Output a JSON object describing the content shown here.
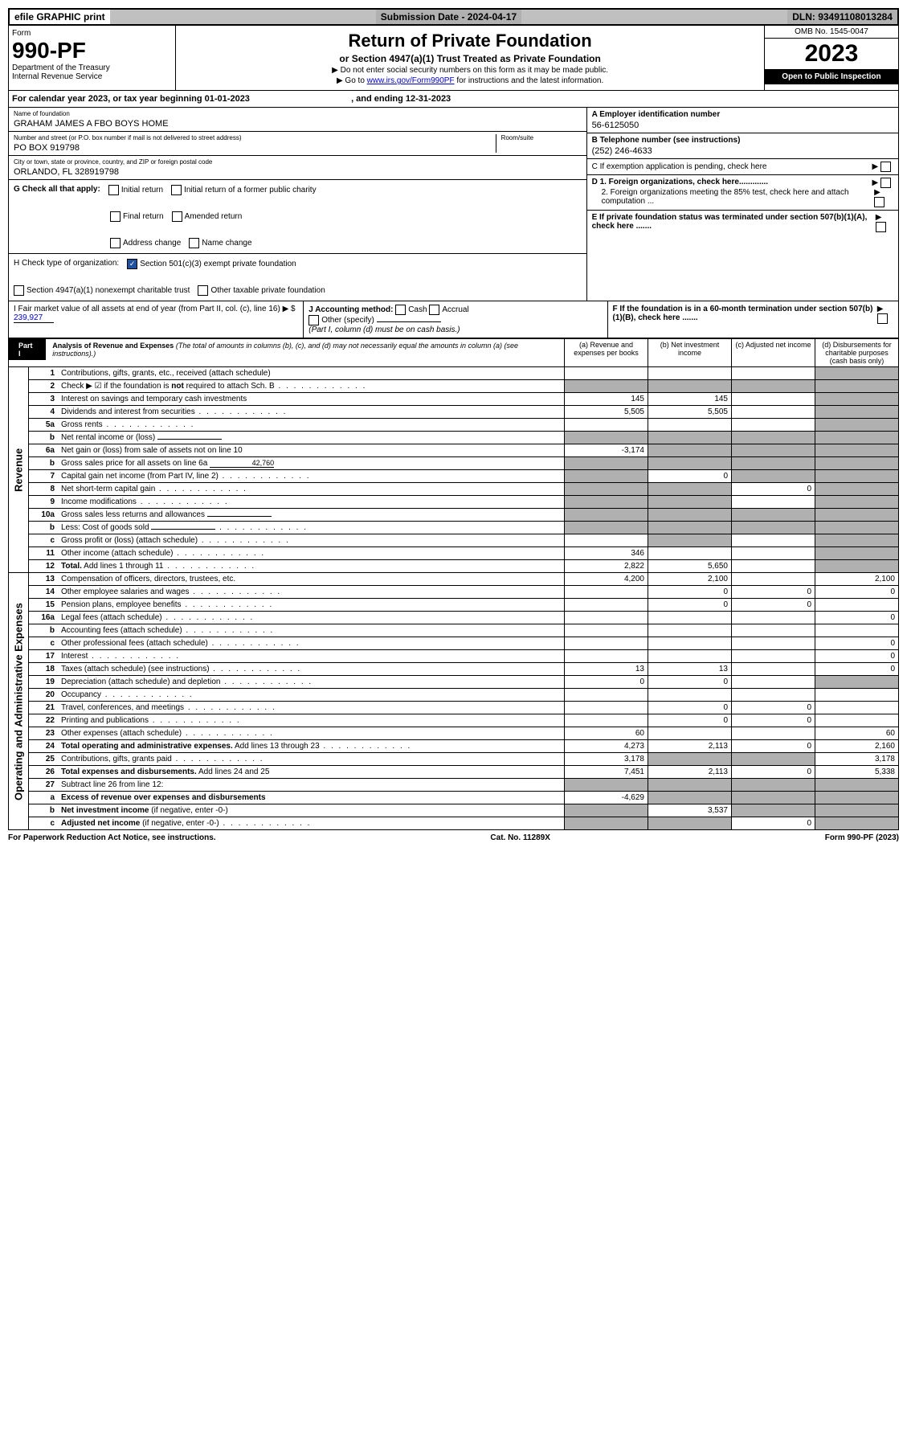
{
  "top_bar": {
    "efile": "efile GRAPHIC print",
    "submission": "Submission Date - 2024-04-17",
    "dln": "DLN: 93491108013284"
  },
  "header": {
    "form_label": "Form",
    "form_number": "990-PF",
    "dept": "Department of the Treasury",
    "irs": "Internal Revenue Service",
    "title": "Return of Private Foundation",
    "subtitle": "or Section 4947(a)(1) Trust Treated as Private Foundation",
    "note1": "▶ Do not enter social security numbers on this form as it may be made public.",
    "note2_pre": "▶ Go to ",
    "note2_link": "www.irs.gov/Form990PF",
    "note2_post": " for instructions and the latest information.",
    "omb": "OMB No. 1545-0047",
    "year": "2023",
    "open": "Open to Public Inspection"
  },
  "calendar": {
    "text_pre": "For calendar year 2023, or tax year beginning ",
    "begin": "01-01-2023",
    "text_mid": ", and ending ",
    "end": "12-31-2023"
  },
  "foundation": {
    "name_label": "Name of foundation",
    "name": "GRAHAM JAMES A FBO BOYS HOME",
    "addr_label": "Number and street (or P.O. box number if mail is not delivered to street address)",
    "addr": "PO BOX 919798",
    "room_label": "Room/suite",
    "city_label": "City or town, state or province, country, and ZIP or foreign postal code",
    "city": "ORLANDO, FL  328919798"
  },
  "right_info": {
    "a_label": "A Employer identification number",
    "a_value": "56-6125050",
    "b_label": "B Telephone number (see instructions)",
    "b_value": "(252) 246-4633",
    "c_label": "C If exemption application is pending, check here",
    "d1_label": "D 1. Foreign organizations, check here.............",
    "d2_label": "2. Foreign organizations meeting the 85% test, check here and attach computation ...",
    "e_label": "E If private foundation status was terminated under section 507(b)(1)(A), check here .......",
    "f_label": "F If the foundation is in a 60-month termination under section 507(b)(1)(B), check here ......."
  },
  "checks": {
    "g_label": "G Check all that apply:",
    "g_opts": [
      "Initial return",
      "Initial return of a former public charity",
      "Final return",
      "Amended return",
      "Address change",
      "Name change"
    ],
    "h_label": "H Check type of organization:",
    "h_opt1": "Section 501(c)(3) exempt private foundation",
    "h_opt2": "Section 4947(a)(1) nonexempt charitable trust",
    "h_opt3": "Other taxable private foundation",
    "i_label": "I Fair market value of all assets at end of year (from Part II, col. (c), line 16) ▶ $",
    "i_value": "239,927",
    "j_label": "J Accounting method:",
    "j_opts": [
      "Cash",
      "Accrual"
    ],
    "j_other": "Other (specify)",
    "j_note": "(Part I, column (d) must be on cash basis.)"
  },
  "part1": {
    "label": "Part I",
    "title": "Analysis of Revenue and Expenses",
    "desc": "(The total of amounts in columns (b), (c), and (d) may not necessarily equal the amounts in column (a) (see instructions).)",
    "cols": {
      "a": "(a) Revenue and expenses per books",
      "b": "(b) Net investment income",
      "c": "(c) Adjusted net income",
      "d": "(d) Disbursements for charitable purposes (cash basis only)"
    }
  },
  "sections": {
    "revenue": "Revenue",
    "expenses": "Operating and Administrative Expenses"
  },
  "rows": [
    {
      "n": "1",
      "desc": "Contributions, gifts, grants, etc., received (attach schedule)",
      "a": "",
      "b": "",
      "c": "",
      "d": "",
      "shade": [
        "d"
      ]
    },
    {
      "n": "2",
      "desc": "Check ▶ ☑ if the foundation is <b>not</b> required to attach Sch. B",
      "dots": true,
      "a": "",
      "b": "",
      "c": "",
      "d": "",
      "shade": [
        "a",
        "b",
        "c",
        "d"
      ]
    },
    {
      "n": "3",
      "desc": "Interest on savings and temporary cash investments",
      "a": "145",
      "b": "145",
      "c": "",
      "d": "",
      "shade": [
        "d"
      ]
    },
    {
      "n": "4",
      "desc": "Dividends and interest from securities",
      "dots": true,
      "a": "5,505",
      "b": "5,505",
      "c": "",
      "d": "",
      "shade": [
        "d"
      ]
    },
    {
      "n": "5a",
      "desc": "Gross rents",
      "dots": true,
      "a": "",
      "b": "",
      "c": "",
      "d": "",
      "shade": [
        "d"
      ]
    },
    {
      "n": "b",
      "desc": "Net rental income or (loss)",
      "fill": true,
      "a": "",
      "b": "",
      "c": "",
      "d": "",
      "shade": [
        "a",
        "b",
        "c",
        "d"
      ]
    },
    {
      "n": "6a",
      "desc": "Net gain or (loss) from sale of assets not on line 10",
      "a": "-3,174",
      "b": "",
      "c": "",
      "d": "",
      "shade": [
        "b",
        "c",
        "d"
      ]
    },
    {
      "n": "b",
      "desc": "Gross sales price for all assets on line 6a",
      "fill": true,
      "fillval": "42,760",
      "a": "",
      "b": "",
      "c": "",
      "d": "",
      "shade": [
        "a",
        "b",
        "c",
        "d"
      ]
    },
    {
      "n": "7",
      "desc": "Capital gain net income (from Part IV, line 2)",
      "dots": true,
      "a": "",
      "b": "0",
      "c": "",
      "d": "",
      "shade": [
        "a",
        "c",
        "d"
      ]
    },
    {
      "n": "8",
      "desc": "Net short-term capital gain",
      "dots": true,
      "a": "",
      "b": "",
      "c": "0",
      "d": "",
      "shade": [
        "a",
        "b",
        "d"
      ]
    },
    {
      "n": "9",
      "desc": "Income modifications",
      "dots": true,
      "a": "",
      "b": "",
      "c": "",
      "d": "",
      "shade": [
        "a",
        "b",
        "d"
      ]
    },
    {
      "n": "10a",
      "desc": "Gross sales less returns and allowances",
      "fill": true,
      "a": "",
      "b": "",
      "c": "",
      "d": "",
      "shade": [
        "a",
        "b",
        "c",
        "d"
      ]
    },
    {
      "n": "b",
      "desc": "Less: Cost of goods sold",
      "dots": true,
      "fill": true,
      "a": "",
      "b": "",
      "c": "",
      "d": "",
      "shade": [
        "a",
        "b",
        "c",
        "d"
      ]
    },
    {
      "n": "c",
      "desc": "Gross profit or (loss) (attach schedule)",
      "dots": true,
      "a": "",
      "b": "",
      "c": "",
      "d": "",
      "shade": [
        "b",
        "d"
      ]
    },
    {
      "n": "11",
      "desc": "Other income (attach schedule)",
      "dots": true,
      "a": "346",
      "b": "",
      "c": "",
      "d": "",
      "shade": [
        "d"
      ]
    },
    {
      "n": "12",
      "desc": "<b>Total.</b> Add lines 1 through 11",
      "dots": true,
      "a": "2,822",
      "b": "5,650",
      "c": "",
      "d": "",
      "shade": [
        "d"
      ]
    },
    {
      "n": "13",
      "desc": "Compensation of officers, directors, trustees, etc.",
      "a": "4,200",
      "b": "2,100",
      "c": "",
      "d": "2,100"
    },
    {
      "n": "14",
      "desc": "Other employee salaries and wages",
      "dots": true,
      "a": "",
      "b": "0",
      "c": "0",
      "d": "0"
    },
    {
      "n": "15",
      "desc": "Pension plans, employee benefits",
      "dots": true,
      "a": "",
      "b": "0",
      "c": "0",
      "d": ""
    },
    {
      "n": "16a",
      "desc": "Legal fees (attach schedule)",
      "dots": true,
      "a": "",
      "b": "",
      "c": "",
      "d": "0"
    },
    {
      "n": "b",
      "desc": "Accounting fees (attach schedule)",
      "dots": true,
      "a": "",
      "b": "",
      "c": "",
      "d": ""
    },
    {
      "n": "c",
      "desc": "Other professional fees (attach schedule)",
      "dots": true,
      "a": "",
      "b": "",
      "c": "",
      "d": "0"
    },
    {
      "n": "17",
      "desc": "Interest",
      "dots": true,
      "a": "",
      "b": "",
      "c": "",
      "d": "0"
    },
    {
      "n": "18",
      "desc": "Taxes (attach schedule) (see instructions)",
      "dots": true,
      "a": "13",
      "b": "13",
      "c": "",
      "d": "0"
    },
    {
      "n": "19",
      "desc": "Depreciation (attach schedule) and depletion",
      "dots": true,
      "a": "0",
      "b": "0",
      "c": "",
      "d": "",
      "shade": [
        "d"
      ]
    },
    {
      "n": "20",
      "desc": "Occupancy",
      "dots": true,
      "a": "",
      "b": "",
      "c": "",
      "d": ""
    },
    {
      "n": "21",
      "desc": "Travel, conferences, and meetings",
      "dots": true,
      "a": "",
      "b": "0",
      "c": "0",
      "d": ""
    },
    {
      "n": "22",
      "desc": "Printing and publications",
      "dots": true,
      "a": "",
      "b": "0",
      "c": "0",
      "d": ""
    },
    {
      "n": "23",
      "desc": "Other expenses (attach schedule)",
      "dots": true,
      "a": "60",
      "b": "",
      "c": "",
      "d": "60"
    },
    {
      "n": "24",
      "desc": "<b>Total operating and administrative expenses.</b> Add lines 13 through 23",
      "dots": true,
      "a": "4,273",
      "b": "2,113",
      "c": "0",
      "d": "2,160"
    },
    {
      "n": "25",
      "desc": "Contributions, gifts, grants paid",
      "dots": true,
      "a": "3,178",
      "b": "",
      "c": "",
      "d": "3,178",
      "shade": [
        "b",
        "c"
      ]
    },
    {
      "n": "26",
      "desc": "<b>Total expenses and disbursements.</b> Add lines 24 and 25",
      "a": "7,451",
      "b": "2,113",
      "c": "0",
      "d": "5,338"
    },
    {
      "n": "27",
      "desc": "Subtract line 26 from line 12:",
      "a": "",
      "b": "",
      "c": "",
      "d": "",
      "shade": [
        "a",
        "b",
        "c",
        "d"
      ]
    },
    {
      "n": "a",
      "desc": "<b>Excess of revenue over expenses and disbursements</b>",
      "a": "-4,629",
      "b": "",
      "c": "",
      "d": "",
      "shade": [
        "b",
        "c",
        "d"
      ]
    },
    {
      "n": "b",
      "desc": "<b>Net investment income</b> (if negative, enter -0-)",
      "a": "",
      "b": "3,537",
      "c": "",
      "d": "",
      "shade": [
        "a",
        "c",
        "d"
      ]
    },
    {
      "n": "c",
      "desc": "<b>Adjusted net income</b> (if negative, enter -0-)",
      "dots": true,
      "a": "",
      "b": "",
      "c": "0",
      "d": "",
      "shade": [
        "a",
        "b",
        "d"
      ]
    }
  ],
  "footer": {
    "left": "For Paperwork Reduction Act Notice, see instructions.",
    "mid": "Cat. No. 11289X",
    "right": "Form 990-PF (2023)"
  }
}
